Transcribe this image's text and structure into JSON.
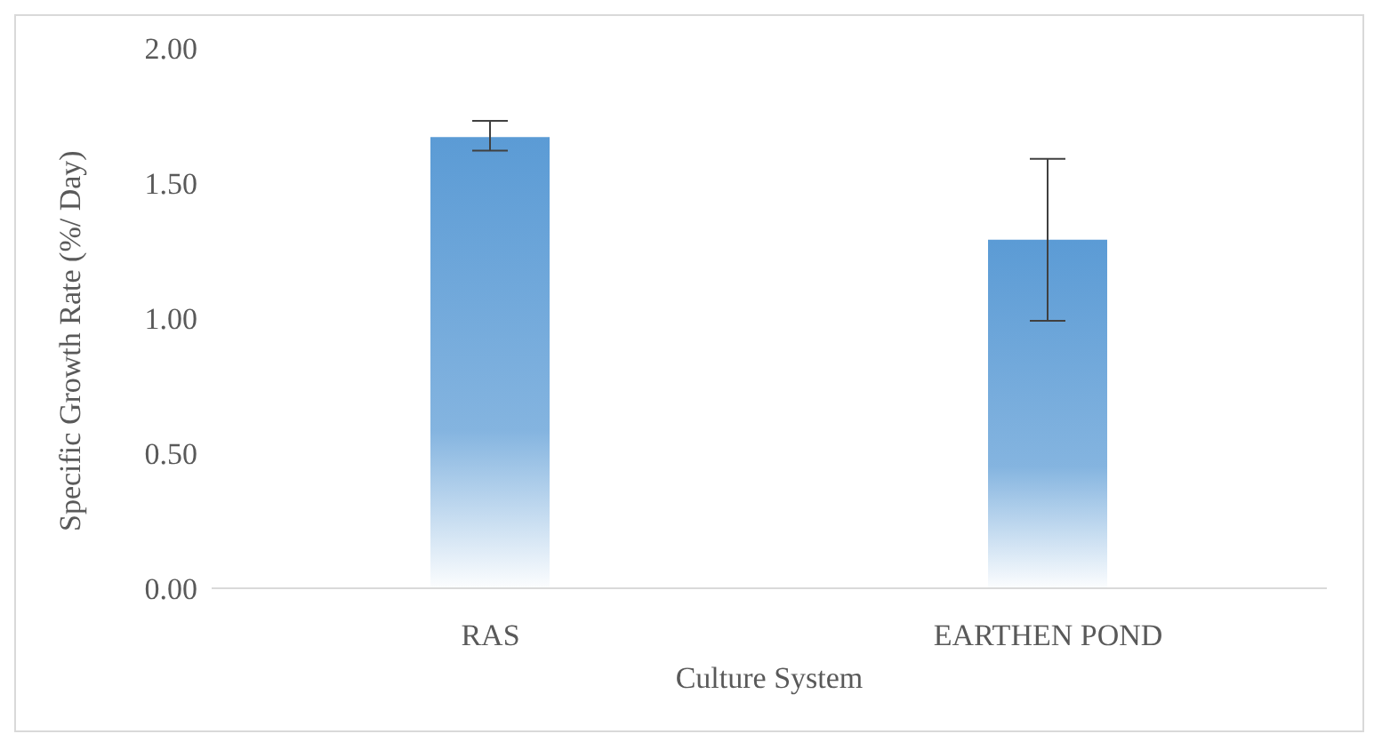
{
  "chart_data": {
    "type": "bar",
    "xlabel": "Culture System",
    "ylabel": "Specific Growth Rate (%/ Day)",
    "categories": [
      "RAS",
      "EARTHEN POND"
    ],
    "values": [
      1.67,
      1.29
    ],
    "errors": [
      [
        1.62,
        1.73
      ],
      [
        0.99,
        1.59
      ]
    ],
    "color": "#5b9bd5",
    "ylim": [
      0,
      2
    ],
    "yticks": [
      {
        "value": 0,
        "label": "0.00"
      },
      {
        "value": 0.5,
        "label": "0.50"
      },
      {
        "value": 1,
        "label": "1.00"
      },
      {
        "value": 1.5,
        "label": "1.50"
      },
      {
        "value": 2,
        "label": "2.00"
      }
    ],
    "grid": false,
    "legend": false
  }
}
